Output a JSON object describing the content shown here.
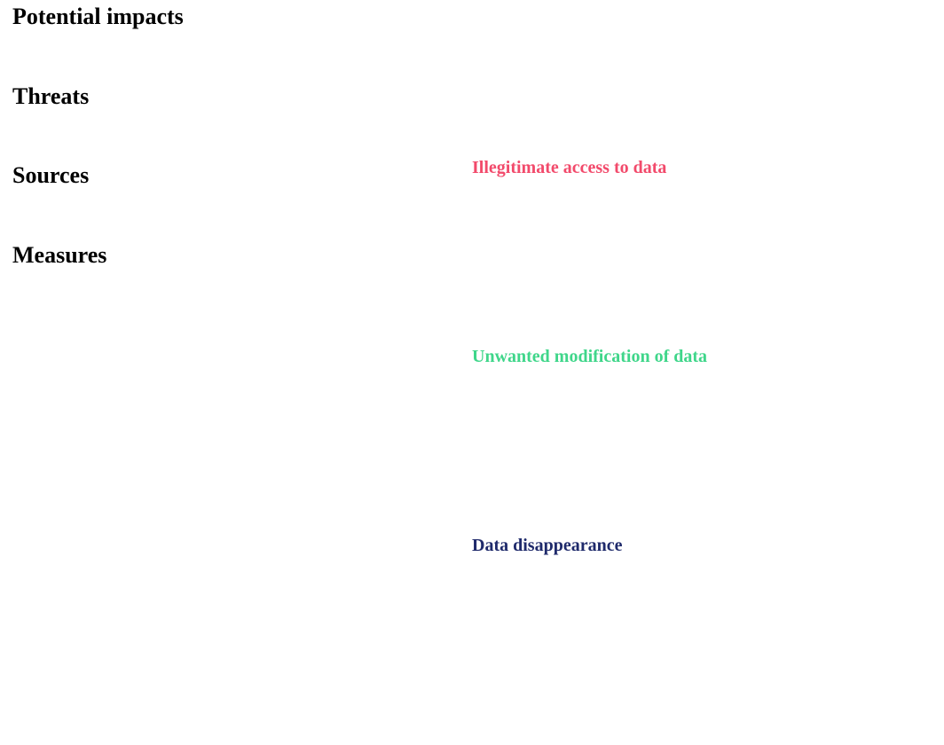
{
  "headings": {
    "potential_impacts": "Potential impacts",
    "threats": "Threats",
    "sources": "Sources",
    "measures": "Measures"
  },
  "risks": [
    {
      "label": "Illegitimate access to data",
      "color": "#f24a6b"
    },
    {
      "label": "Unwanted modification of data",
      "color": "#3fd68a"
    },
    {
      "label": "Data disappearance",
      "color": "#1f2a6b"
    }
  ]
}
